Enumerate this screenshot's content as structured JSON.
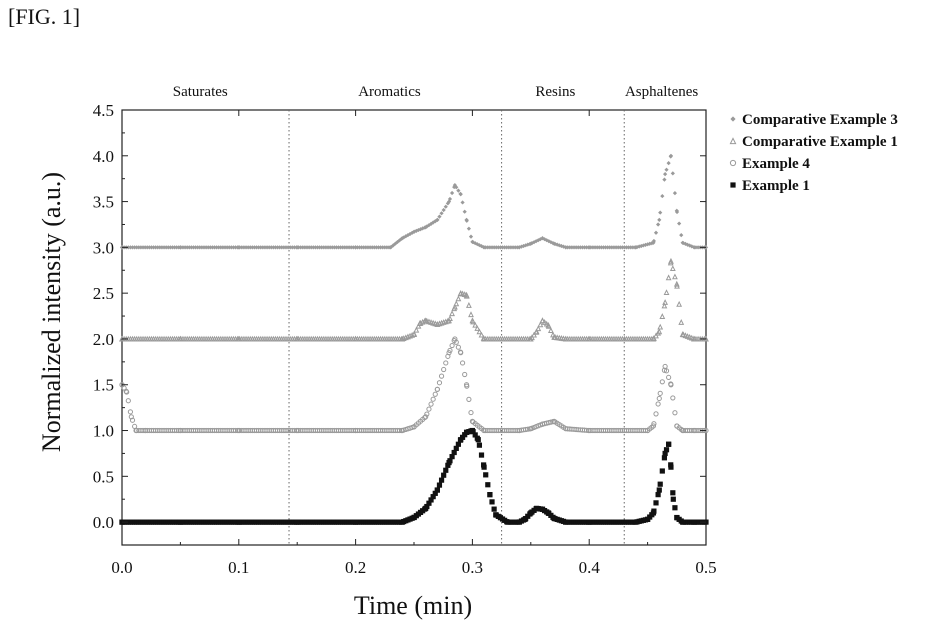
{
  "figure_label": "[FIG. 1]",
  "chart_data": {
    "type": "scatter",
    "title": "",
    "xlabel": "Time (min)",
    "ylabel": "Normalized intensity (a.u.)",
    "xlim": [
      0.0,
      0.5
    ],
    "ylim": [
      -0.25,
      4.5
    ],
    "xticks": [
      0.0,
      0.1,
      0.2,
      0.3,
      0.4,
      0.5
    ],
    "xtick_labels": [
      "0.0",
      "0.1",
      "0.2",
      "0.3",
      "0.4",
      "0.5"
    ],
    "yticks": [
      0.0,
      0.5,
      1.0,
      1.5,
      2.0,
      2.5,
      3.0,
      3.5,
      4.0,
      4.5
    ],
    "ytick_labels": [
      "0.0",
      "0.5",
      "1.0",
      "1.5",
      "2.0",
      "2.5",
      "3.0",
      "3.5",
      "4.0",
      "4.5"
    ],
    "regions": [
      {
        "label": "Saturates",
        "center_x": 0.067
      },
      {
        "label": "Aromatics",
        "center_x": 0.229
      },
      {
        "label": "Resins",
        "center_x": 0.371
      },
      {
        "label": "Asphaltenes",
        "center_x": 0.462
      }
    ],
    "dividers_x": [
      0.143,
      0.325,
      0.43
    ],
    "legend_position": "outside-right",
    "series": [
      {
        "name": "Comparative Example 3",
        "color": "#9a9a9a",
        "marker": "diamond",
        "x": [
          0.0,
          0.05,
          0.1,
          0.15,
          0.2,
          0.23,
          0.24,
          0.25,
          0.26,
          0.27,
          0.28,
          0.285,
          0.29,
          0.295,
          0.3,
          0.31,
          0.34,
          0.35,
          0.36,
          0.37,
          0.38,
          0.4,
          0.44,
          0.455,
          0.46,
          0.465,
          0.47,
          0.475,
          0.48,
          0.49,
          0.5
        ],
        "y": [
          3.0,
          3.0,
          3.0,
          3.0,
          3.0,
          3.0,
          3.1,
          3.17,
          3.22,
          3.3,
          3.5,
          3.68,
          3.58,
          3.3,
          3.06,
          3.0,
          3.0,
          3.04,
          3.1,
          3.04,
          3.0,
          3.0,
          3.0,
          3.05,
          3.3,
          3.8,
          4.0,
          3.4,
          3.05,
          3.0,
          3.0
        ]
      },
      {
        "name": "Comparative Example 1",
        "color": "#9a9a9a",
        "marker": "triangle",
        "x": [
          0.0,
          0.05,
          0.1,
          0.15,
          0.2,
          0.24,
          0.25,
          0.255,
          0.26,
          0.27,
          0.28,
          0.285,
          0.29,
          0.295,
          0.3,
          0.31,
          0.35,
          0.355,
          0.36,
          0.365,
          0.37,
          0.38,
          0.4,
          0.455,
          0.46,
          0.465,
          0.47,
          0.475,
          0.48,
          0.49,
          0.5
        ],
        "y": [
          2.0,
          2.0,
          2.0,
          2.0,
          2.0,
          2.0,
          2.05,
          2.17,
          2.2,
          2.16,
          2.2,
          2.35,
          2.5,
          2.48,
          2.2,
          2.0,
          2.0,
          2.08,
          2.2,
          2.15,
          2.02,
          2.0,
          2.0,
          2.0,
          2.08,
          2.4,
          2.85,
          2.6,
          2.05,
          2.0,
          2.0
        ]
      },
      {
        "name": "Example 4",
        "color": "#9a9a9a",
        "marker": "circle",
        "x": [
          0.0,
          0.004,
          0.008,
          0.012,
          0.02,
          0.05,
          0.1,
          0.15,
          0.2,
          0.24,
          0.25,
          0.26,
          0.27,
          0.28,
          0.285,
          0.29,
          0.295,
          0.3,
          0.31,
          0.34,
          0.35,
          0.36,
          0.37,
          0.38,
          0.4,
          0.45,
          0.455,
          0.46,
          0.465,
          0.47,
          0.475,
          0.48,
          0.49,
          0.5
        ],
        "y": [
          1.5,
          1.42,
          1.15,
          1.0,
          1.0,
          1.0,
          1.0,
          1.0,
          1.0,
          1.0,
          1.04,
          1.15,
          1.45,
          1.85,
          2.0,
          1.85,
          1.5,
          1.1,
          1.0,
          1.0,
          1.02,
          1.07,
          1.1,
          1.02,
          1.0,
          1.0,
          1.05,
          1.35,
          1.7,
          1.5,
          1.05,
          1.0,
          1.0,
          1.0
        ]
      },
      {
        "name": "Example 1",
        "color": "#111111",
        "marker": "square",
        "x": [
          0.0,
          0.05,
          0.1,
          0.15,
          0.2,
          0.24,
          0.25,
          0.26,
          0.27,
          0.28,
          0.29,
          0.295,
          0.3,
          0.305,
          0.31,
          0.315,
          0.32,
          0.33,
          0.34,
          0.345,
          0.35,
          0.355,
          0.36,
          0.365,
          0.37,
          0.38,
          0.4,
          0.44,
          0.45,
          0.455,
          0.46,
          0.465,
          0.468,
          0.47,
          0.472,
          0.475,
          0.48,
          0.49,
          0.5
        ],
        "y": [
          0.0,
          0.0,
          0.0,
          0.0,
          0.0,
          0.0,
          0.05,
          0.15,
          0.35,
          0.65,
          0.9,
          0.98,
          1.0,
          0.9,
          0.6,
          0.3,
          0.08,
          0.0,
          0.0,
          0.03,
          0.1,
          0.15,
          0.14,
          0.1,
          0.04,
          0.0,
          0.0,
          0.0,
          0.03,
          0.1,
          0.35,
          0.75,
          0.85,
          0.6,
          0.25,
          0.05,
          0.0,
          0.0,
          0.0
        ]
      }
    ]
  }
}
